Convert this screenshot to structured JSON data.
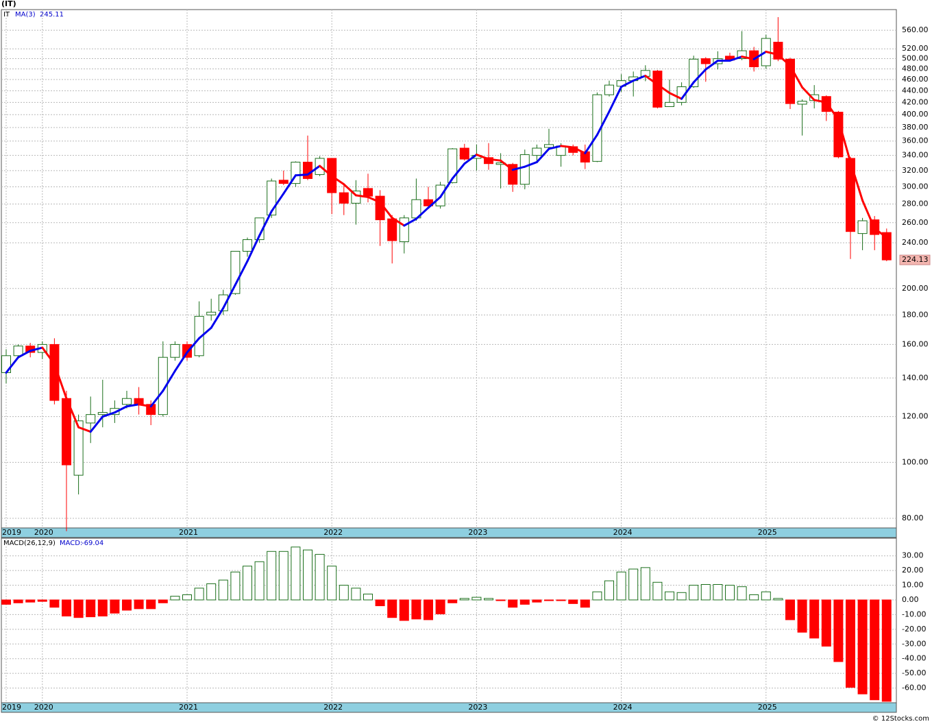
{
  "chart_data": [
    {
      "type": "candlestick",
      "title": "(IT)",
      "ticker": "IT",
      "categories": [
        "2019",
        null,
        null,
        "2020",
        null,
        null,
        null,
        null,
        null,
        null,
        null,
        null,
        null,
        null,
        null,
        "2021",
        null,
        null,
        null,
        null,
        null,
        null,
        null,
        null,
        null,
        null,
        null,
        "2022",
        null,
        null,
        null,
        null,
        null,
        null,
        null,
        null,
        null,
        null,
        null,
        "2023",
        null,
        null,
        null,
        null,
        null,
        null,
        null,
        null,
        null,
        null,
        null,
        "2024",
        null,
        null,
        null,
        null,
        null,
        null,
        null,
        null,
        null,
        null,
        null,
        "2025",
        null,
        null,
        null,
        null,
        null,
        null,
        null,
        null,
        null,
        null
      ],
      "open": [
        143,
        153,
        159,
        155,
        160,
        129,
        95,
        117,
        121,
        121,
        126,
        129,
        126,
        121,
        152,
        160,
        153,
        180,
        183,
        196,
        232,
        243,
        268,
        308,
        304,
        331,
        315,
        336,
        293,
        281,
        298,
        289,
        264,
        241,
        265,
        285,
        278,
        305,
        350,
        336,
        337,
        328,
        328,
        303,
        340,
        351,
        340,
        352,
        345,
        332,
        433,
        448,
        458,
        466,
        476,
        413,
        420,
        447,
        500,
        490,
        505,
        500,
        516,
        486,
        534,
        499,
        417,
        423,
        430,
        404,
        336,
        249,
        263,
        250
      ],
      "high": [
        157,
        160,
        161,
        162,
        164,
        133,
        121,
        130,
        139,
        128,
        133,
        135,
        128,
        162,
        162,
        162,
        190,
        192,
        199,
        232,
        245,
        265,
        310,
        320,
        332,
        368,
        339,
        336,
        303,
        308,
        316,
        296,
        268,
        268,
        310,
        300,
        306,
        350,
        356,
        355,
        357,
        343,
        330,
        348,
        355,
        378,
        357,
        355,
        355,
        437,
        458,
        470,
        475,
        487,
        478,
        460,
        455,
        506,
        503,
        515,
        512,
        558,
        524,
        550,
        590,
        502,
        425,
        450,
        432,
        406,
        338,
        265,
        267,
        254
      ],
      "low": [
        137,
        152,
        152,
        151,
        126,
        76,
        88,
        108,
        115,
        117,
        124,
        121,
        116,
        120,
        150,
        150,
        152,
        176,
        180,
        195,
        227,
        240,
        265,
        302,
        300,
        308,
        313,
        269,
        268,
        258,
        282,
        237,
        221,
        230,
        262,
        276,
        275,
        304,
        333,
        320,
        321,
        298,
        294,
        297,
        332,
        348,
        325,
        340,
        322,
        331,
        430,
        438,
        430,
        457,
        410,
        413,
        415,
        445,
        456,
        479,
        496,
        497,
        475,
        480,
        495,
        409,
        368,
        410,
        390,
        336,
        225,
        233,
        233,
        223
      ],
      "close": [
        153,
        159,
        155,
        160,
        128,
        99,
        118,
        121,
        122,
        124,
        129,
        126,
        121,
        152,
        160,
        152,
        179,
        182,
        195,
        232,
        243,
        265,
        307,
        304,
        331,
        310,
        336,
        293,
        281,
        295,
        289,
        263,
        242,
        265,
        285,
        278,
        302,
        349,
        335,
        340,
        329,
        330,
        303,
        341,
        350,
        355,
        353,
        344,
        331,
        433,
        450,
        458,
        465,
        477,
        412,
        420,
        447,
        499,
        490,
        500,
        497,
        516,
        484,
        542,
        499,
        418,
        422,
        433,
        405,
        338,
        251,
        262,
        248,
        224.13
      ],
      "ma": {
        "name": "MA(3)",
        "values": [
          143,
          152,
          156,
          158,
          148,
          129,
          115,
          113,
          120,
          122,
          125,
          126,
          125,
          133,
          144,
          155,
          164,
          171,
          185,
          203,
          223,
          247,
          272,
          292,
          314,
          315,
          326,
          313,
          303,
          290,
          288,
          282,
          265,
          257,
          264,
          276,
          288,
          310,
          329,
          341,
          335,
          333,
          321,
          325,
          331,
          349,
          353,
          351,
          343,
          369,
          405,
          447,
          458,
          467,
          451,
          436,
          426,
          455,
          479,
          496,
          496,
          504,
          499,
          514,
          508,
          486,
          446,
          424,
          420,
          392,
          331,
          284,
          254,
          245.11
        ]
      },
      "ylim": [
        77,
        608
      ],
      "log_scale": true,
      "grid": true,
      "yticks": [
        {
          "value": 80,
          "label": "80.00"
        },
        {
          "value": 100,
          "label": "100.00"
        },
        {
          "value": 120,
          "label": "120.00"
        },
        {
          "value": 140,
          "label": "140.00"
        },
        {
          "value": 160,
          "label": "160.00"
        },
        {
          "value": 180,
          "label": "180.00"
        },
        {
          "value": 200,
          "label": "200.00"
        },
        {
          "value": 240,
          "label": "240.00"
        },
        {
          "value": 260,
          "label": "260.00"
        },
        {
          "value": 280,
          "label": "280.00"
        },
        {
          "value": 300,
          "label": "300.00"
        },
        {
          "value": 320,
          "label": "320.00"
        },
        {
          "value": 340,
          "label": "340.00"
        },
        {
          "value": 360,
          "label": "360.00"
        },
        {
          "value": 380,
          "label": "380.00"
        },
        {
          "value": 400,
          "label": "400.00"
        },
        {
          "value": 420,
          "label": "420.00"
        },
        {
          "value": 440,
          "label": "440.00"
        },
        {
          "value": 460,
          "label": "460.00"
        },
        {
          "value": 480,
          "label": "480.00"
        },
        {
          "value": 500,
          "label": "500.00"
        },
        {
          "value": 520,
          "label": "520.00"
        },
        {
          "value": 560,
          "label": "560.00"
        }
      ],
      "up_color": "#1a6e1a",
      "down_color": "#ff0000",
      "ma_up_color": "#0000ee",
      "ma_down_color": "#ff0000"
    },
    {
      "type": "bar",
      "name": "MACD(26,12,9)",
      "value_name": "MACD:",
      "values": [
        -3,
        -2,
        -1.5,
        -1,
        -5,
        -11,
        -12,
        -11.5,
        -11,
        -9,
        -7,
        -6,
        -6,
        -2,
        2.5,
        3.5,
        8,
        11,
        13.5,
        19,
        23,
        26,
        33,
        33,
        36,
        34,
        31,
        23,
        10,
        8,
        4,
        -4,
        -12,
        -14,
        -13,
        -13.5,
        -9.5,
        -2,
        1,
        1.8,
        1,
        -0.5,
        -5,
        -3,
        -1.5,
        -0.5,
        -0.5,
        -2.5,
        -5,
        5.5,
        13,
        19,
        21,
        22,
        12,
        5.5,
        5,
        10,
        10.5,
        10.5,
        10,
        9,
        3.5,
        5.5,
        1,
        -13.5,
        -22,
        -26,
        -31.5,
        -42,
        -59.5,
        -64,
        -68,
        -69.04
      ],
      "ylim": [
        -70,
        42
      ],
      "grid": true,
      "yticks": [
        {
          "value": 30,
          "label": "30.00"
        },
        {
          "value": 20,
          "label": "20.00"
        },
        {
          "value": 10,
          "label": "10.00"
        },
        {
          "value": 0,
          "label": "0.00"
        },
        {
          "value": -10,
          "label": "-10.00"
        },
        {
          "value": -20,
          "label": "-20.00"
        },
        {
          "value": -30,
          "label": "-30.00"
        },
        {
          "value": -40,
          "label": "-40.00"
        },
        {
          "value": -50,
          "label": "-50.00"
        },
        {
          "value": -60,
          "label": "-60.00"
        }
      ],
      "up_color": "#1a6e1a",
      "down_color": "#ff0000"
    }
  ],
  "footer": "© 12Stocks.com"
}
